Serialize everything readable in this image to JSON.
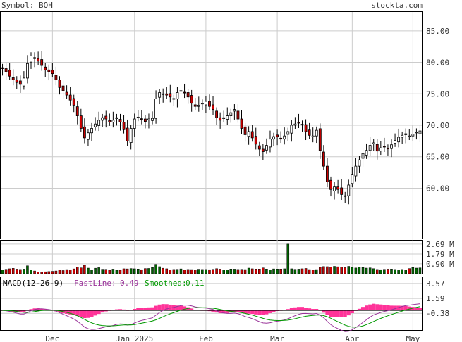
{
  "header": {
    "symbol_label": "Symbol: BOH",
    "site": "stockta.com"
  },
  "colors": {
    "up_candle_fill": "#ffffff",
    "down_candle_fill": "#cc0000",
    "volume_up": "#006600",
    "volume_down": "#cc0000",
    "macd_hist": "#ff3399",
    "fastline": "#993399",
    "smoothed": "#009900",
    "grid": "#cccccc",
    "text": "#333333"
  },
  "price": {
    "y_ticks": [
      "85.00",
      "80.00",
      "75.00",
      "70.00",
      "65.00",
      "60.00"
    ],
    "ylim": [
      52,
      88
    ]
  },
  "volume": {
    "y_ticks": [
      "2.69 M",
      "1.79 M",
      "0.90 M"
    ],
    "ylim": [
      0,
      3.0
    ]
  },
  "macd": {
    "title": "MACD(12-26-9)",
    "fast_label": "FastLine:",
    "fast_value": "0.49",
    "smooth_label": "Smoothed:",
    "smooth_value": "0.11",
    "y_ticks": [
      "3.57",
      "1.59",
      "-0.38"
    ],
    "ylim": [
      -2.6,
      4.4
    ]
  },
  "x_labels": [
    "Dec",
    "Jan 2025",
    "Feb",
    "Mar",
    "Apr",
    "May"
  ],
  "chart_data": {
    "type": "candlestick",
    "price_close": [
      79,
      78.5,
      77.8,
      77.2,
      76.8,
      76.5,
      77.5,
      79.8,
      81,
      80.6,
      80.2,
      79.5,
      78.8,
      78.5,
      78.2,
      77.2,
      76,
      75.5,
      74.8,
      74,
      73.2,
      71.5,
      69.5,
      68,
      68.8,
      69.5,
      70.2,
      70.8,
      71.2,
      71,
      70.5,
      70.8,
      71.2,
      70.5,
      69.3,
      67.5,
      69.5,
      71,
      71.3,
      71,
      70.6,
      71,
      71.1,
      74.2,
      75.2,
      75,
      74.8,
      74.5,
      74.2,
      75.2,
      75.5,
      75.2,
      74.5,
      73.5,
      73,
      73.2,
      73.5,
      73.8,
      73,
      72.5,
      71.2,
      70.8,
      71.2,
      71.5,
      72,
      72.5,
      71,
      69.5,
      68.5,
      69,
      68,
      67,
      66.2,
      65.8,
      66.8,
      67.8,
      68.2,
      68.2,
      67.8,
      68.3,
      69,
      70,
      70.2,
      70.4,
      70.1,
      69,
      68.4,
      68.3,
      69.2,
      66,
      63.5,
      61,
      59.8,
      60.2,
      59.8,
      59,
      58.8,
      60.5,
      62.2,
      63.5,
      64.5,
      65.5,
      66,
      66.8,
      67.2,
      65.9,
      66.4,
      66.6,
      66.3,
      66.9,
      67.6,
      68.1,
      68.4,
      68.5,
      68.3,
      68.6,
      68.9,
      69.1
    ],
    "volume_m": [
      0.34,
      0.4,
      0.45,
      0.49,
      0.42,
      0.39,
      0.42,
      0.72,
      0.34,
      0.25,
      0.15,
      0.17,
      0.18,
      0.2,
      0.22,
      0.25,
      0.33,
      0.29,
      0.38,
      0.34,
      0.44,
      0.61,
      0.53,
      0.77,
      0.51,
      0.34,
      0.5,
      0.55,
      0.41,
      0.4,
      0.32,
      0.42,
      0.32,
      0.32,
      0.45,
      0.44,
      0.47,
      0.45,
      0.43,
      0.37,
      0.47,
      0.48,
      0.56,
      0.85,
      0.64,
      0.5,
      0.45,
      0.36,
      0.39,
      0.4,
      0.44,
      0.35,
      0.39,
      0.38,
      0.34,
      0.41,
      0.39,
      0.39,
      0.37,
      0.4,
      0.46,
      0.42,
      0.35,
      0.36,
      0.43,
      0.42,
      0.39,
      0.4,
      0.38,
      0.51,
      0.45,
      0.43,
      0.43,
      0.53,
      0.43,
      0.34,
      0.44,
      0.43,
      0.43,
      0.45,
      2.69,
      0.45,
      0.4,
      0.42,
      0.45,
      0.48,
      0.38,
      0.33,
      0.38,
      0.58,
      0.65,
      0.64,
      0.6,
      0.67,
      0.63,
      0.61,
      0.55,
      0.67,
      0.58,
      0.52,
      0.59,
      0.56,
      0.51,
      0.53,
      0.46,
      0.39,
      0.37,
      0.4,
      0.42,
      0.43,
      0.39,
      0.36,
      0.39,
      0.33,
      0.47,
      0.56,
      0.51,
      0.53
    ]
  }
}
